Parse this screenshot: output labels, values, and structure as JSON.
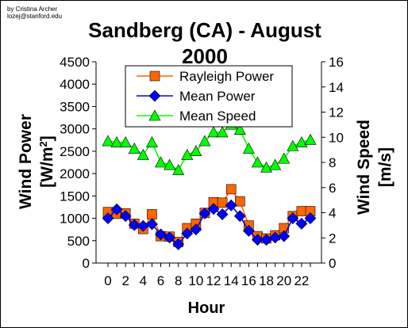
{
  "credit": {
    "line1": "by Cristina Archer",
    "line2": "lozej@stanford.edu"
  },
  "chart_data": {
    "type": "line",
    "title": "Sandberg (CA) - August 2000",
    "title_line1": "Sandberg (CA) - August",
    "title_line2": "2000",
    "xlabel": "Hour",
    "ylabel_left_main": "Wind Power",
    "ylabel_left_unit_prefix": "[W/m",
    "ylabel_left_unit_sup": "2",
    "ylabel_left_unit_suffix": "]",
    "ylabel_right_main": "Wind Speed",
    "ylabel_right_unit": "[m/s]",
    "xlim": [
      0,
      23
    ],
    "ylim_left": [
      0,
      4500
    ],
    "ylim_right": [
      0,
      16
    ],
    "x_ticks": [
      0,
      2,
      4,
      6,
      8,
      10,
      12,
      14,
      16,
      18,
      20,
      22
    ],
    "y_left_ticks": [
      0,
      500,
      1000,
      1500,
      2000,
      2500,
      3000,
      3500,
      4000,
      4500
    ],
    "y_right_ticks": [
      0,
      2,
      4,
      6,
      8,
      10,
      12,
      14,
      16
    ],
    "grid": false,
    "legend_position": "top-center",
    "x": [
      0,
      1,
      2,
      3,
      4,
      5,
      6,
      7,
      8,
      9,
      10,
      11,
      12,
      13,
      14,
      15,
      16,
      17,
      18,
      19,
      20,
      21,
      22,
      23
    ],
    "series": [
      {
        "name": "Rayleigh Power",
        "axis": "left",
        "marker": "square",
        "color": "#FF6600",
        "values": [
          1140,
          1100,
          1110,
          880,
          760,
          1090,
          600,
          590,
          470,
          780,
          880,
          1120,
          1360,
          1350,
          1650,
          1380,
          840,
          600,
          550,
          620,
          780,
          1050,
          1160,
          1160
        ]
      },
      {
        "name": "Mean Power",
        "axis": "left",
        "marker": "diamond",
        "color": "#0000FF",
        "values": [
          1000,
          1200,
          1050,
          850,
          830,
          870,
          640,
          570,
          420,
          660,
          750,
          1110,
          1210,
          1090,
          1290,
          1050,
          720,
          520,
          520,
          570,
          600,
          1000,
          880,
          1000
        ]
      },
      {
        "name": "Mean Speed",
        "axis": "right",
        "marker": "triangle",
        "color": "#00FF00",
        "values": [
          9.7,
          9.6,
          9.6,
          9.1,
          8.6,
          9.6,
          8.0,
          7.8,
          7.4,
          8.6,
          8.9,
          9.7,
          10.4,
          10.4,
          11.0,
          10.6,
          9.1,
          8.0,
          7.6,
          7.8,
          8.3,
          9.3,
          9.6,
          9.8
        ]
      }
    ]
  }
}
